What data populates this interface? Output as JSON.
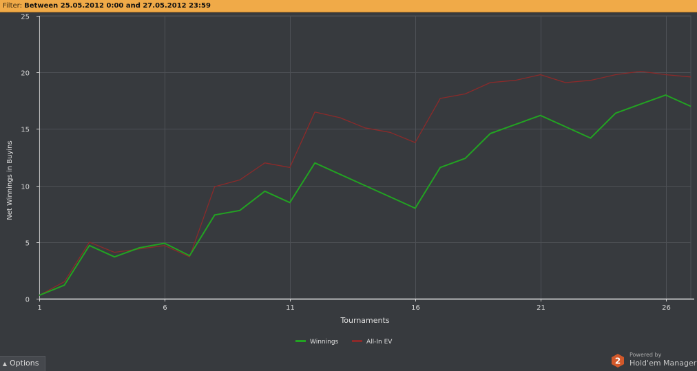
{
  "filter": {
    "label": "Filter:",
    "value": "Between 25.05.2012 0:00 and 27.05.2012 23:59"
  },
  "options_label": "Options",
  "brand": {
    "powered_by": "Powered by",
    "name": "Hold'em Manager",
    "logo_text": "2"
  },
  "colors": {
    "background": "#373a3e",
    "grid": "#4e5156",
    "winnings": "#22a322",
    "allin_ev": "#8c2a2a",
    "filter_bar": "#f0aa48",
    "logo": "#d2582a"
  },
  "chart_data": {
    "type": "line",
    "xlabel": "Tournaments",
    "ylabel": "Net Winnings in Buyins",
    "xlim": [
      1,
      27
    ],
    "ylim": [
      0,
      25
    ],
    "xticks": [
      1,
      6,
      11,
      16,
      21,
      26
    ],
    "yticks": [
      0,
      5,
      10,
      15,
      20,
      25
    ],
    "grid": true,
    "legend_position": "bottom-center",
    "x": [
      1,
      2,
      3,
      4,
      5,
      6,
      7,
      8,
      9,
      10,
      11,
      12,
      13,
      14,
      15,
      16,
      17,
      18,
      19,
      20,
      21,
      22,
      23,
      24,
      25,
      26,
      27
    ],
    "series": [
      {
        "name": "Winnings",
        "color": "#22a322",
        "values": [
          0.3,
          1.2,
          4.7,
          3.7,
          4.5,
          4.9,
          3.8,
          7.4,
          7.8,
          9.5,
          8.5,
          12.0,
          11.0,
          10.0,
          9.0,
          8.0,
          11.6,
          12.4,
          14.6,
          15.4,
          16.2,
          15.2,
          14.2,
          16.4,
          17.2,
          18.0,
          17.0
        ]
      },
      {
        "name": "All-In EV",
        "color": "#8c2a2a",
        "values": [
          0.3,
          1.5,
          5.0,
          4.1,
          4.4,
          4.7,
          3.7,
          9.9,
          10.5,
          12.0,
          11.6,
          16.5,
          16.0,
          15.1,
          14.7,
          13.8,
          17.7,
          18.1,
          19.1,
          19.3,
          19.8,
          19.1,
          19.3,
          19.8,
          20.1,
          19.8,
          19.6
        ]
      }
    ]
  }
}
